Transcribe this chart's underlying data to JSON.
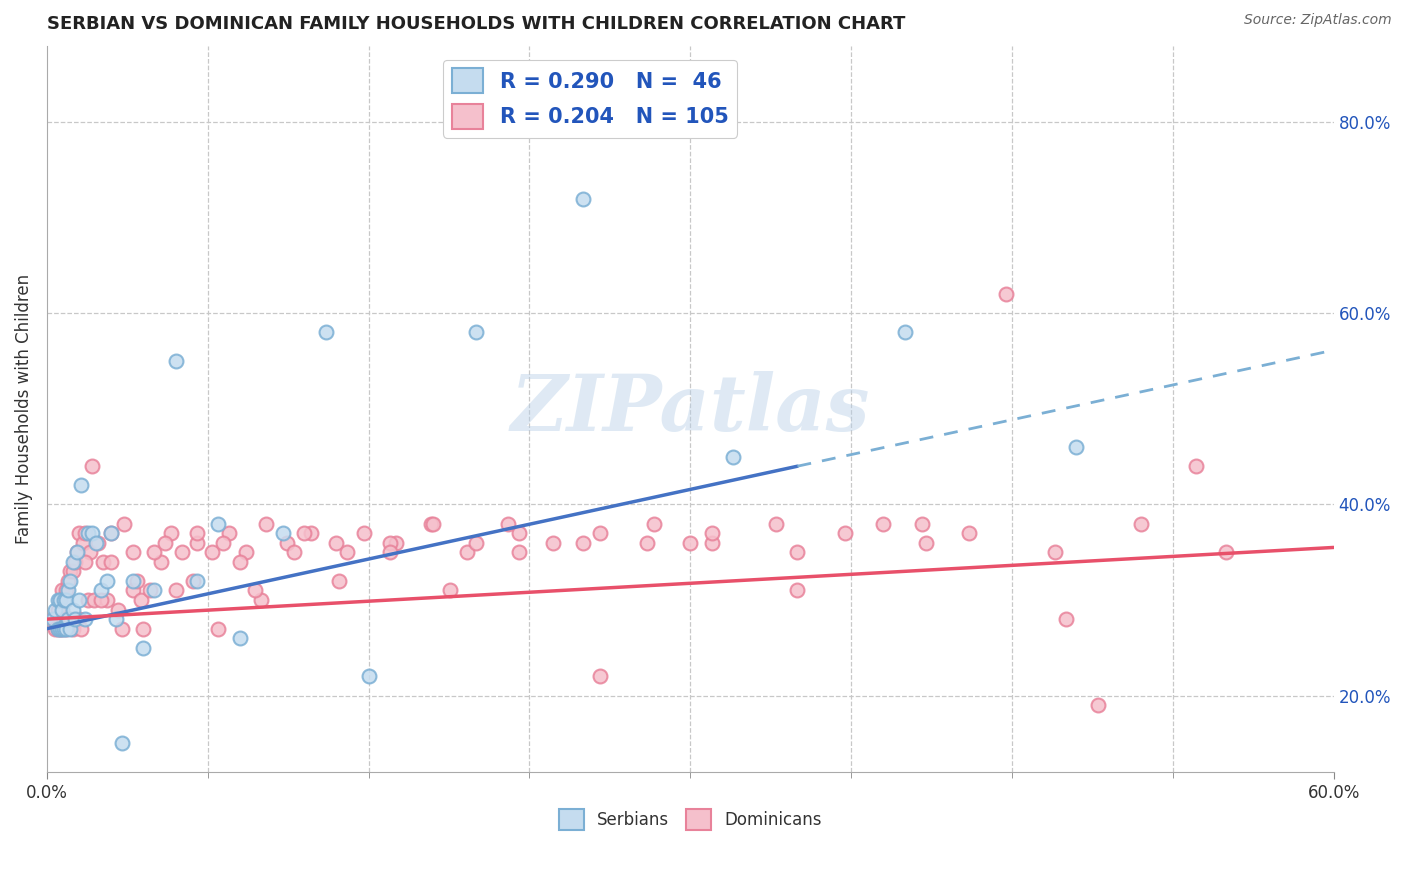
{
  "title": "SERBIAN VS DOMINICAN FAMILY HOUSEHOLDS WITH CHILDREN CORRELATION CHART",
  "source": "Source: ZipAtlas.com",
  "ylabel": "Family Households with Children",
  "right_yticks": [
    "20.0%",
    "40.0%",
    "60.0%",
    "80.0%"
  ],
  "right_ytick_vals": [
    0.2,
    0.4,
    0.6,
    0.8
  ],
  "xlim": [
    0.0,
    0.6
  ],
  "ylim": [
    0.12,
    0.88
  ],
  "R_serbian": 0.29,
  "N_serbian": 46,
  "R_dominican": 0.204,
  "N_dominican": 105,
  "serbian_dot_color": "#7bafd4",
  "serbian_dot_face": "#c5dcef",
  "dominican_dot_color": "#e8829a",
  "dominican_dot_face": "#f5c0cc",
  "serbian_line_color": "#4472c4",
  "dominican_line_color": "#e8506a",
  "serbian_dash_color": "#7bafd4",
  "background_color": "#ffffff",
  "grid_color": "#c8c8c8",
  "watermark": "ZIPatlas",
  "legend_text_color": "#2255bb",
  "serbian_x": [
    0.003,
    0.004,
    0.005,
    0.005,
    0.006,
    0.006,
    0.007,
    0.007,
    0.008,
    0.008,
    0.009,
    0.009,
    0.01,
    0.01,
    0.011,
    0.011,
    0.012,
    0.012,
    0.013,
    0.014,
    0.015,
    0.016,
    0.018,
    0.019,
    0.021,
    0.023,
    0.025,
    0.028,
    0.03,
    0.032,
    0.035,
    0.04,
    0.045,
    0.05,
    0.06,
    0.07,
    0.08,
    0.09,
    0.11,
    0.13,
    0.15,
    0.2,
    0.25,
    0.32,
    0.4,
    0.48
  ],
  "serbian_y": [
    0.28,
    0.29,
    0.27,
    0.3,
    0.27,
    0.3,
    0.27,
    0.29,
    0.27,
    0.3,
    0.27,
    0.3,
    0.28,
    0.31,
    0.27,
    0.32,
    0.29,
    0.34,
    0.28,
    0.35,
    0.3,
    0.42,
    0.28,
    0.37,
    0.37,
    0.36,
    0.31,
    0.32,
    0.37,
    0.28,
    0.15,
    0.32,
    0.25,
    0.31,
    0.55,
    0.32,
    0.38,
    0.26,
    0.37,
    0.58,
    0.22,
    0.58,
    0.72,
    0.45,
    0.58,
    0.46
  ],
  "dominican_x": [
    0.003,
    0.004,
    0.005,
    0.005,
    0.006,
    0.006,
    0.007,
    0.007,
    0.008,
    0.009,
    0.009,
    0.01,
    0.01,
    0.011,
    0.011,
    0.012,
    0.012,
    0.013,
    0.014,
    0.015,
    0.015,
    0.016,
    0.017,
    0.018,
    0.019,
    0.02,
    0.021,
    0.022,
    0.024,
    0.026,
    0.028,
    0.03,
    0.033,
    0.036,
    0.04,
    0.044,
    0.048,
    0.053,
    0.058,
    0.063,
    0.07,
    0.077,
    0.085,
    0.093,
    0.102,
    0.112,
    0.123,
    0.135,
    0.148,
    0.163,
    0.179,
    0.196,
    0.215,
    0.236,
    0.258,
    0.283,
    0.31,
    0.34,
    0.372,
    0.408,
    0.447,
    0.49,
    0.536,
    0.018,
    0.025,
    0.03,
    0.035,
    0.04,
    0.045,
    0.05,
    0.06,
    0.07,
    0.08,
    0.09,
    0.1,
    0.12,
    0.14,
    0.16,
    0.18,
    0.2,
    0.22,
    0.25,
    0.28,
    0.31,
    0.35,
    0.39,
    0.43,
    0.47,
    0.51,
    0.042,
    0.055,
    0.068,
    0.082,
    0.097,
    0.115,
    0.136,
    0.16,
    0.188,
    0.22,
    0.258,
    0.3,
    0.35,
    0.41,
    0.475,
    0.55
  ],
  "dominican_y": [
    0.28,
    0.27,
    0.27,
    0.29,
    0.27,
    0.3,
    0.27,
    0.31,
    0.28,
    0.27,
    0.31,
    0.28,
    0.32,
    0.28,
    0.33,
    0.27,
    0.33,
    0.34,
    0.35,
    0.28,
    0.37,
    0.27,
    0.36,
    0.37,
    0.3,
    0.35,
    0.44,
    0.3,
    0.36,
    0.34,
    0.3,
    0.34,
    0.29,
    0.38,
    0.31,
    0.3,
    0.31,
    0.34,
    0.37,
    0.35,
    0.36,
    0.35,
    0.37,
    0.35,
    0.38,
    0.36,
    0.37,
    0.36,
    0.37,
    0.36,
    0.38,
    0.35,
    0.38,
    0.36,
    0.37,
    0.38,
    0.36,
    0.38,
    0.37,
    0.38,
    0.62,
    0.19,
    0.44,
    0.34,
    0.3,
    0.37,
    0.27,
    0.35,
    0.27,
    0.35,
    0.31,
    0.37,
    0.27,
    0.34,
    0.3,
    0.37,
    0.35,
    0.36,
    0.38,
    0.36,
    0.37,
    0.36,
    0.36,
    0.37,
    0.35,
    0.38,
    0.37,
    0.35,
    0.38,
    0.32,
    0.36,
    0.32,
    0.36,
    0.31,
    0.35,
    0.32,
    0.35,
    0.31,
    0.35,
    0.22,
    0.36,
    0.31,
    0.36,
    0.28,
    0.35
  ]
}
